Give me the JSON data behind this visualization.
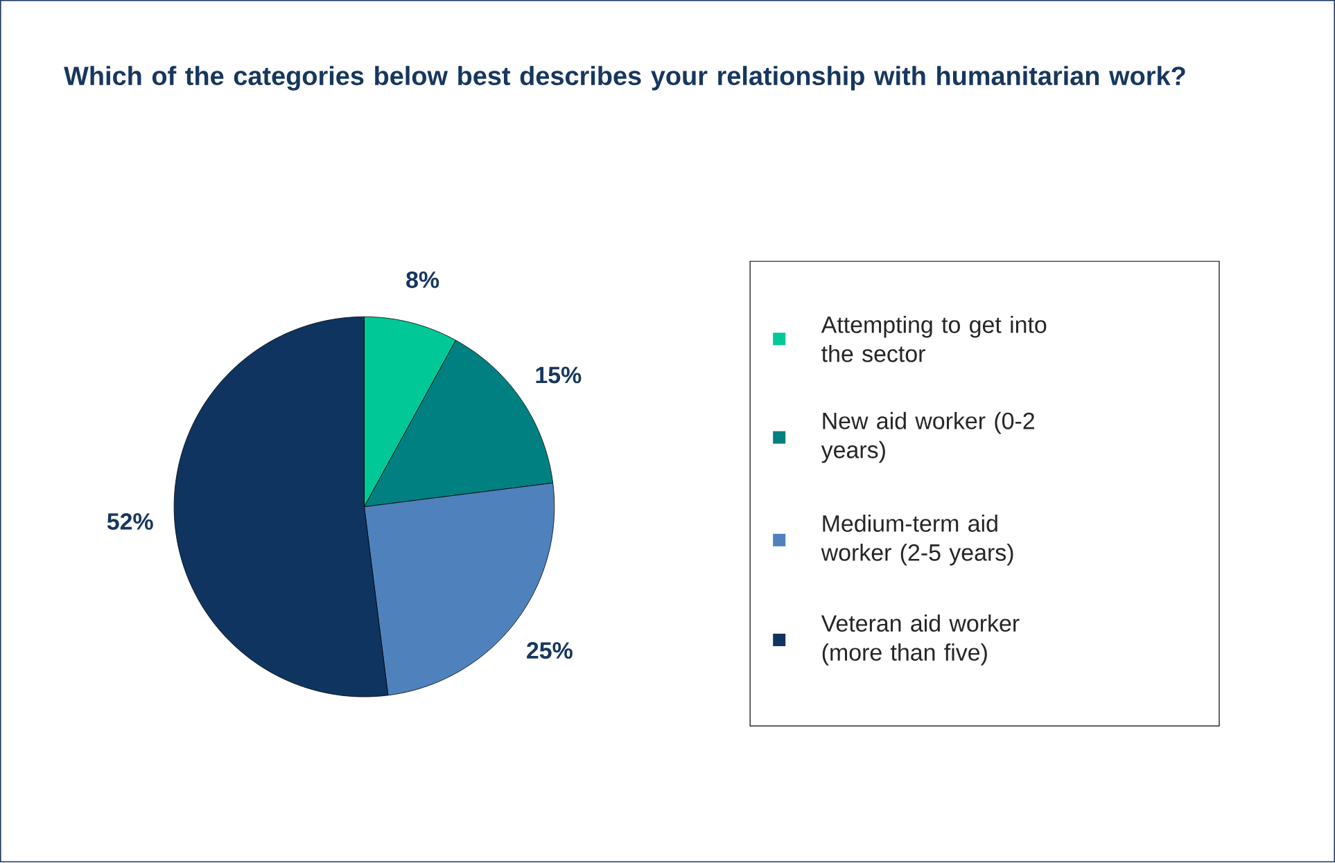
{
  "chart_data": {
    "type": "pie",
    "title": "Which of the categories below best describes your relationship with humanitarian work?",
    "categories": [
      "Attempting to get into the sector",
      "New aid worker (0-2 years)",
      "Medium-term aid worker (2-5 years)",
      "Veteran aid worker (more than five)"
    ],
    "values": [
      8,
      15,
      25,
      52
    ],
    "colors": [
      "#00c896",
      "#008080",
      "#4f81bd",
      "#0f3460"
    ],
    "data_labels": true,
    "value_labels": [
      "8%",
      "15%",
      "25%",
      "52%"
    ],
    "legend": "right"
  }
}
